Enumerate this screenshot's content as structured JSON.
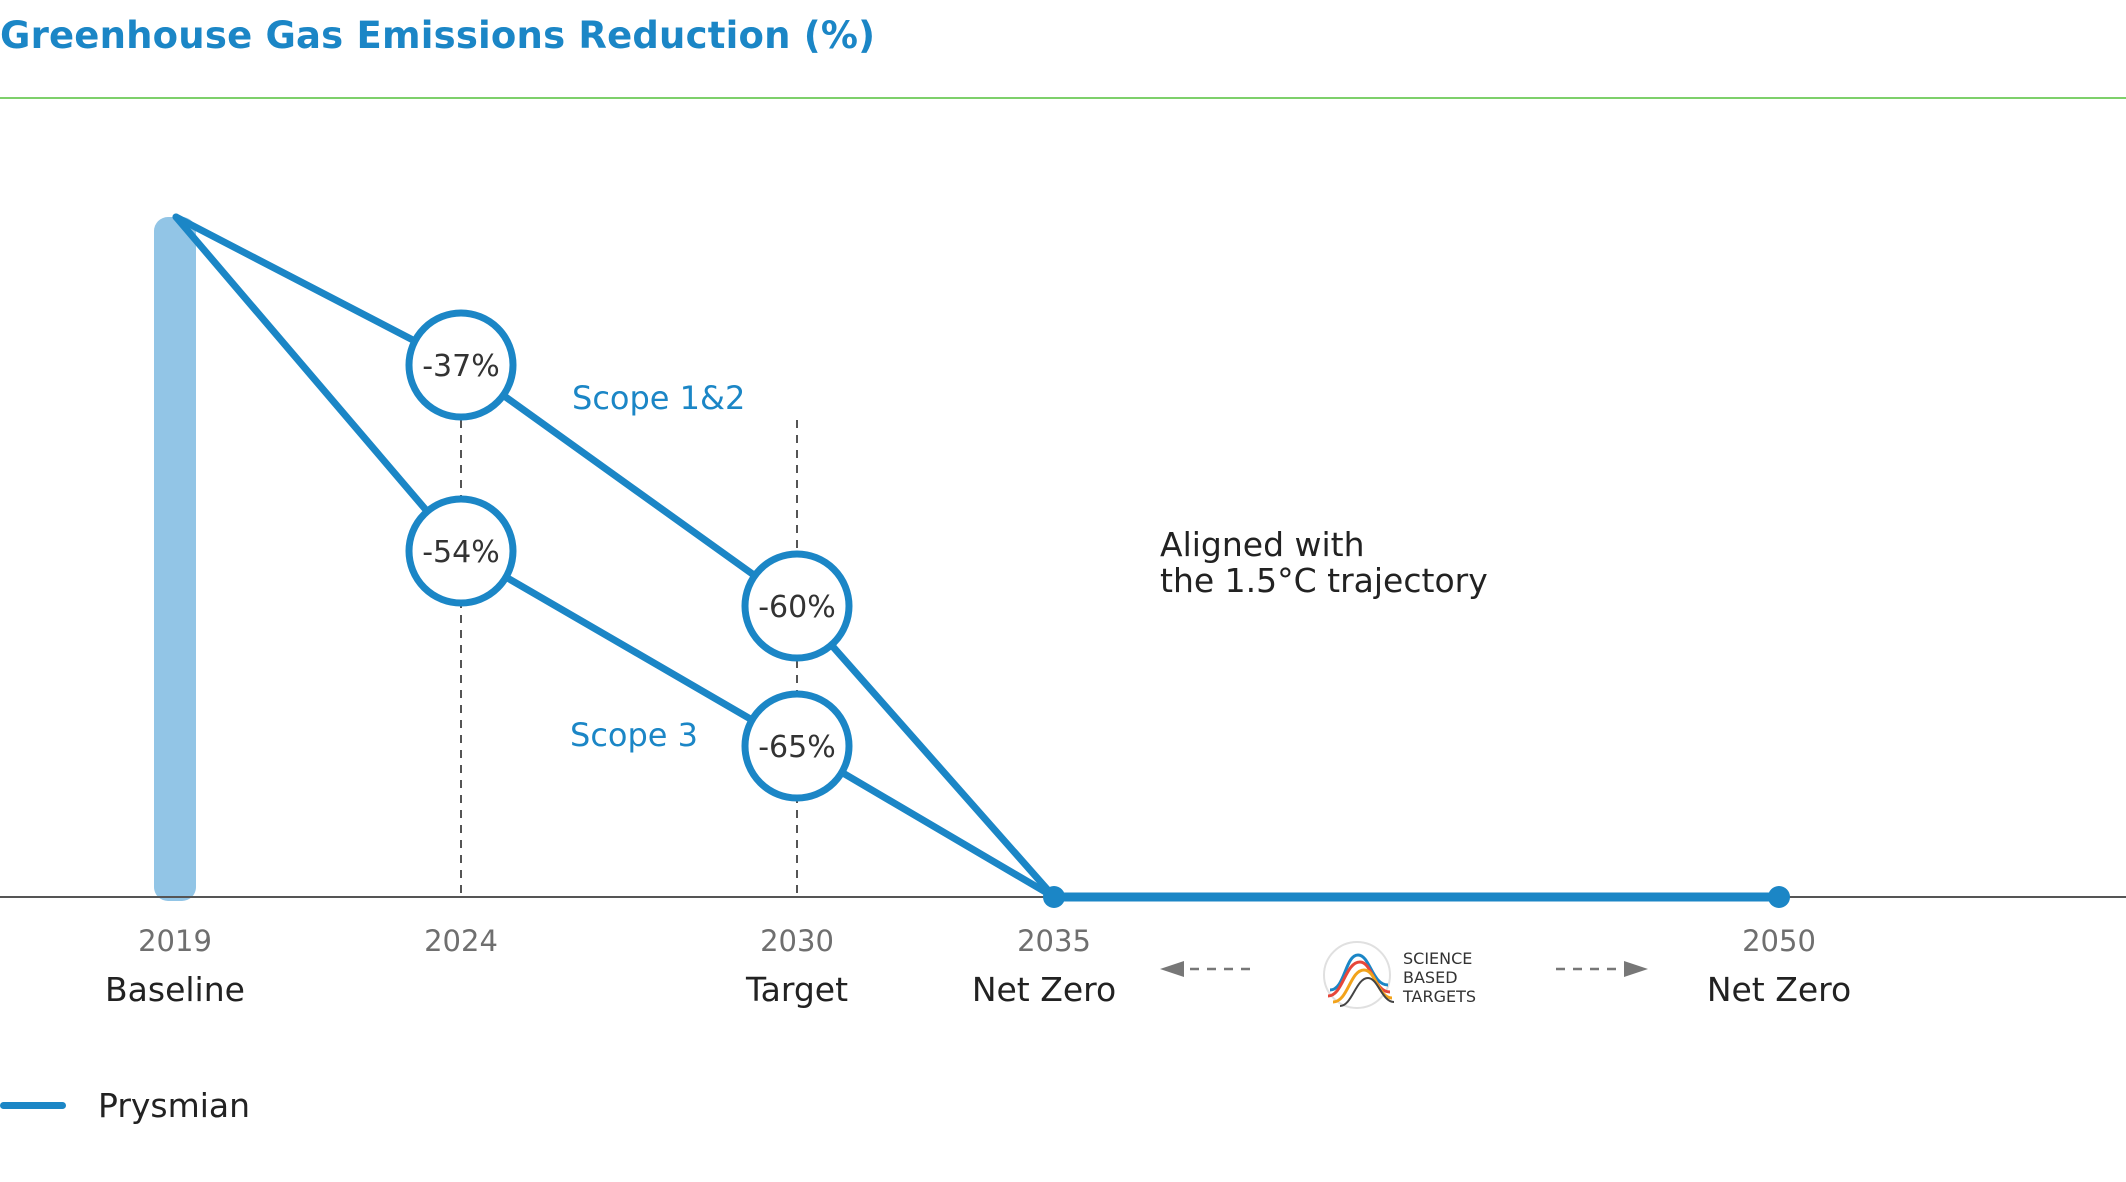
{
  "title": "Greenhouse Gas Emissions Reduction (%)",
  "colors": {
    "title": "#1b86c6",
    "rule": "#7ed06b",
    "line": "#1b86c6",
    "baseline_bar": "#92c5e6",
    "axis": "#555555",
    "text": "#222222",
    "muted": "#6f6f6f"
  },
  "chart_data": {
    "type": "line",
    "title": "Greenhouse Gas Emissions Reduction (%)",
    "x_ticks": [
      {
        "year": "2019",
        "label": "Baseline"
      },
      {
        "year": "2024",
        "label": ""
      },
      {
        "year": "2030",
        "label": "Target"
      },
      {
        "year": "2035",
        "label": "Net Zero"
      },
      {
        "year": "2050",
        "label": "Net Zero"
      }
    ],
    "series": [
      {
        "name": "Scope 1&2",
        "points": [
          {
            "x": 2019,
            "y": 0,
            "label": ""
          },
          {
            "x": 2024,
            "y": -37,
            "label": "-37%"
          },
          {
            "x": 2030,
            "y": -60,
            "label": "-60%"
          },
          {
            "x": 2035,
            "y": -100,
            "label": ""
          }
        ]
      },
      {
        "name": "Scope 3",
        "points": [
          {
            "x": 2019,
            "y": 0,
            "label": ""
          },
          {
            "x": 2024,
            "y": -54,
            "label": "-54%"
          },
          {
            "x": 2030,
            "y": -65,
            "label": "-65%"
          },
          {
            "x": 2035,
            "y": -100,
            "label": ""
          }
        ]
      }
    ],
    "net_zero_line": {
      "from": 2035,
      "to": 2050,
      "y": -100
    },
    "baseline_bar": {
      "x": 2019,
      "y": 0
    },
    "annotations": {
      "aligned": [
        "Aligned with",
        "the 1.5°C trajectory"
      ],
      "sbt_logo": [
        "SCIENCE",
        "BASED",
        "TARGETS"
      ]
    },
    "legend": [
      {
        "name": "Prysmian"
      }
    ],
    "ylim": [
      -100,
      0
    ]
  }
}
